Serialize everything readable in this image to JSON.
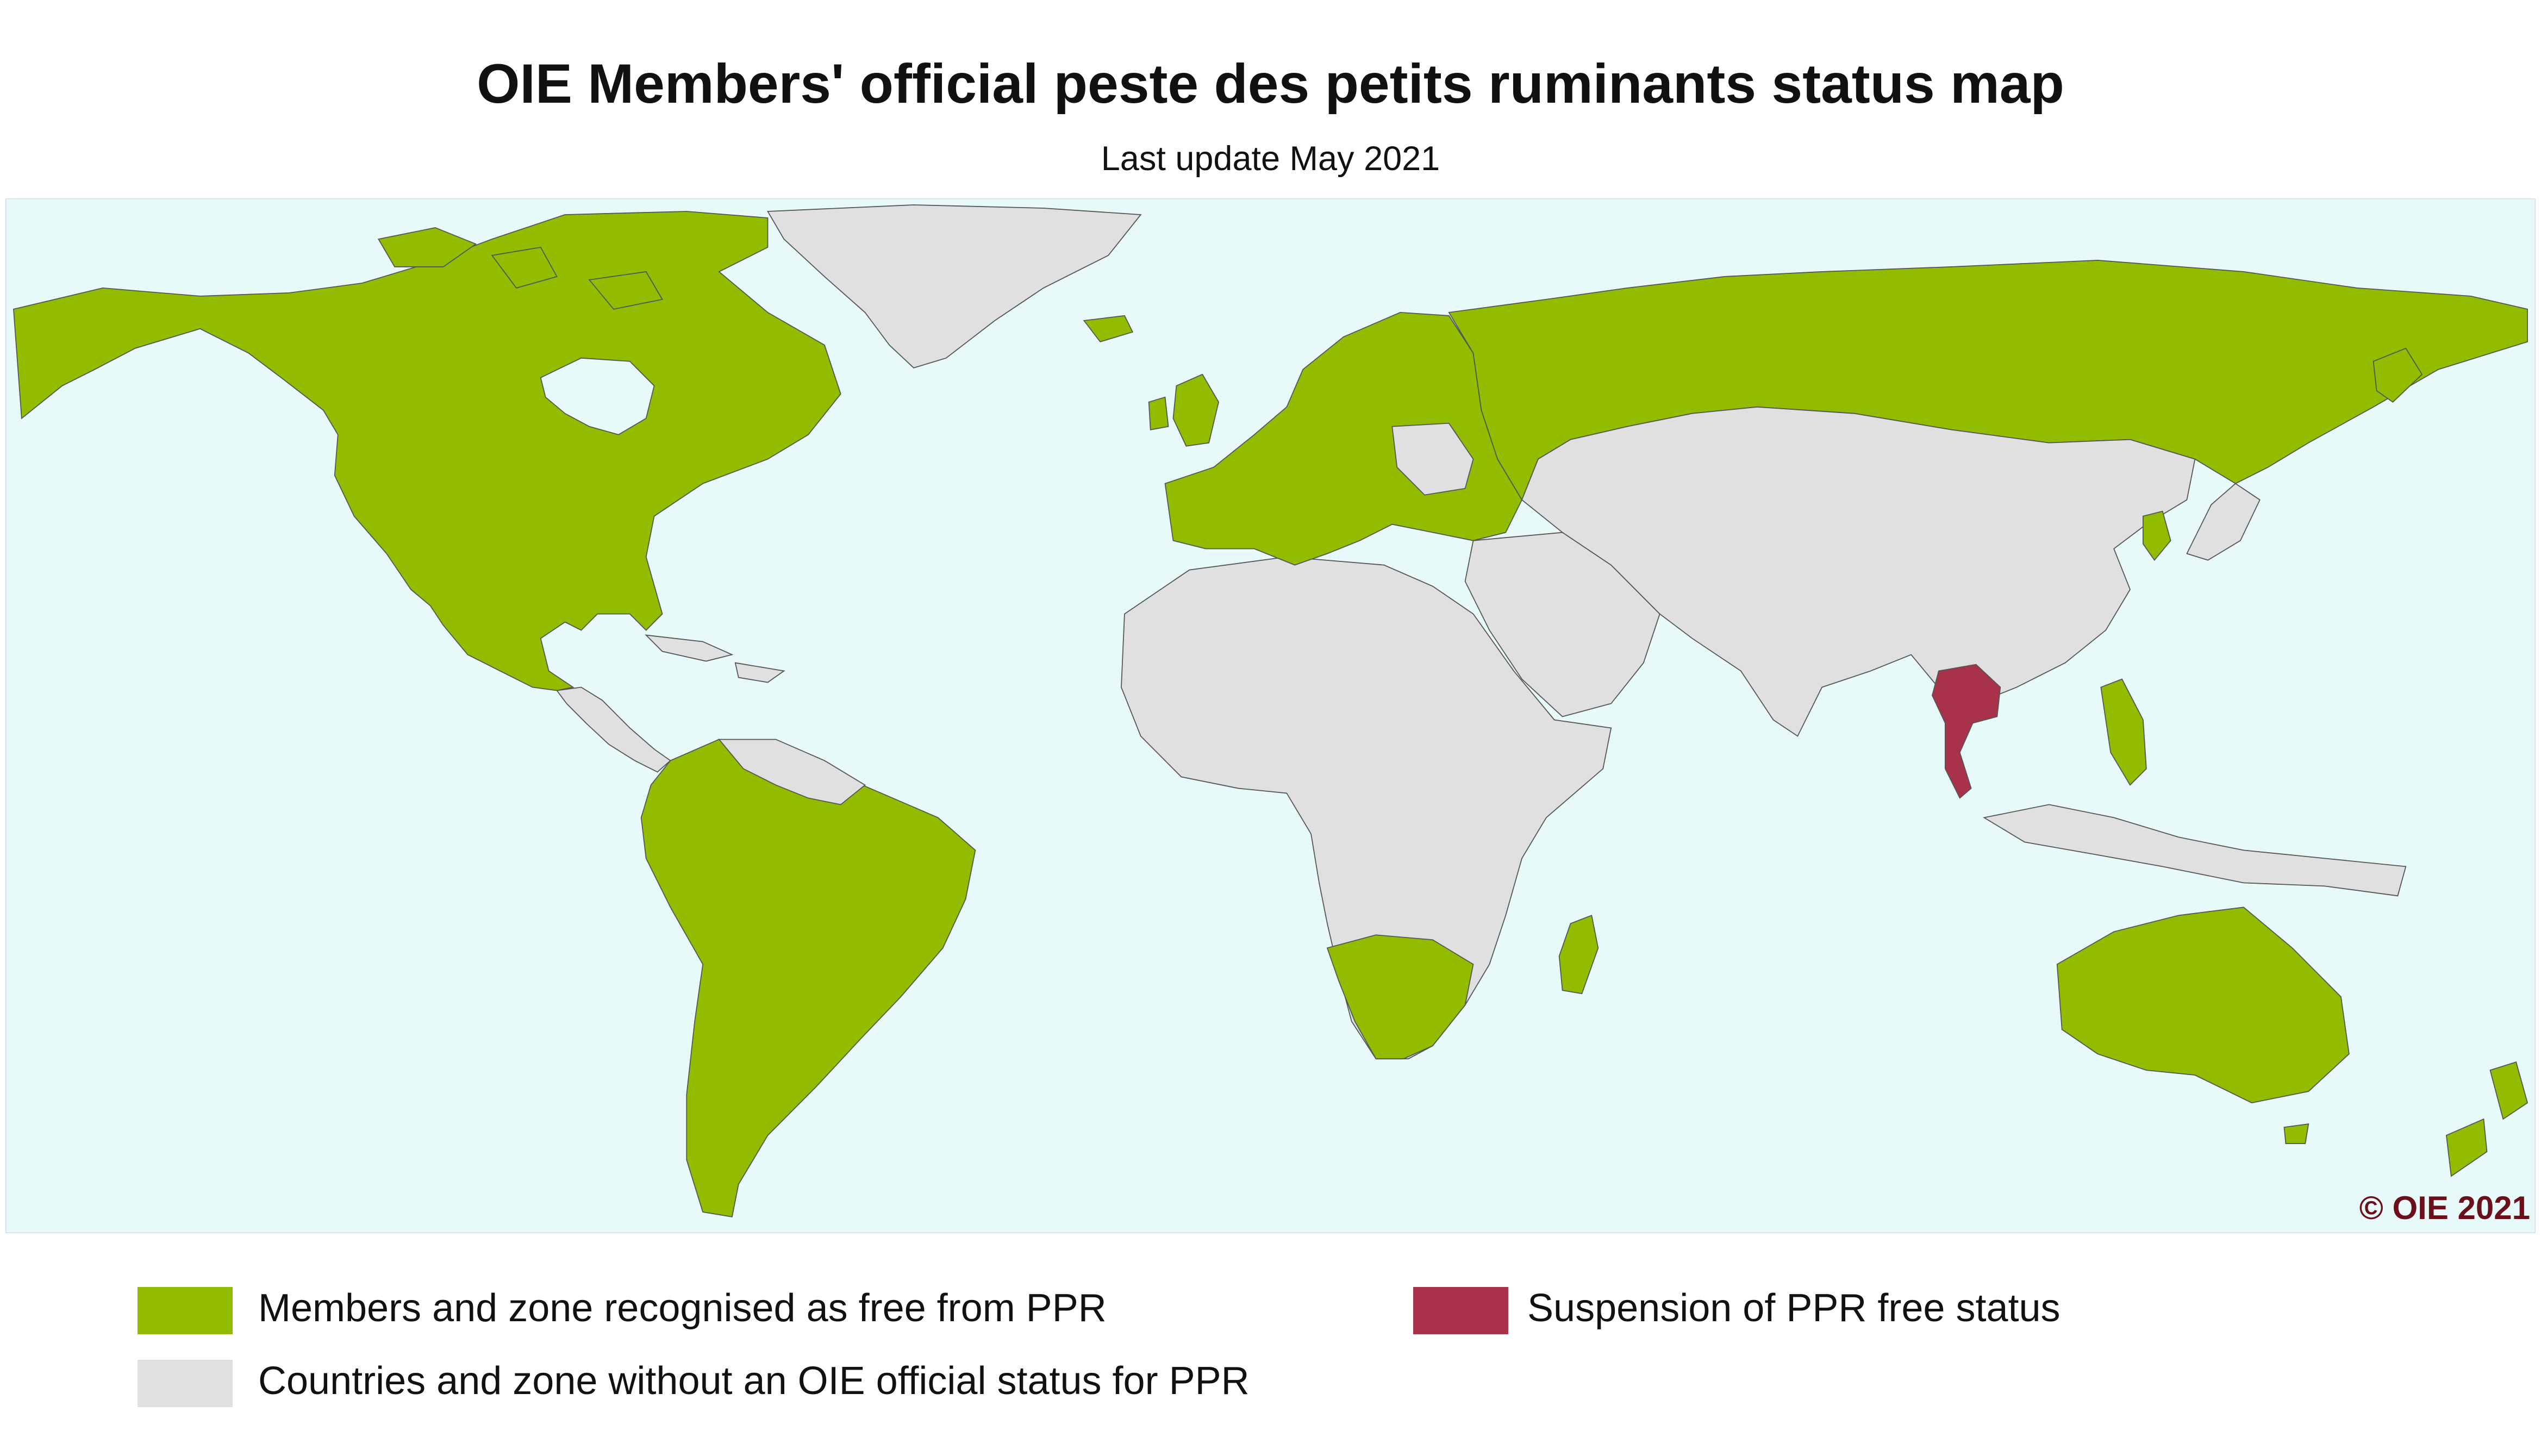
{
  "title": "OIE Members' official peste des petits ruminants status map",
  "subtitle": "Last update May 2021",
  "copyright": "© OIE 2021",
  "colors": {
    "free": "#92BC00",
    "no_status": "#E0E0E0",
    "suspended": "#A8324A",
    "ocean": "#E8F9FA",
    "border": "#555555",
    "copyright": "#6B0F1A"
  },
  "legend": [
    {
      "label": "Members and zone recognised as free from PPR",
      "status": "free"
    },
    {
      "label": "Countries and zone without an OIE official status for PPR",
      "status": "no_status"
    },
    {
      "label": "Suspension of PPR free status",
      "status": "suspended"
    }
  ]
}
